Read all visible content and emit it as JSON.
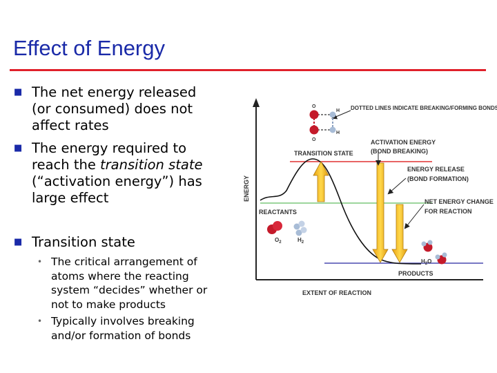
{
  "slide": {
    "title": "Effect of Energy",
    "bullets": {
      "net_energy": {
        "line1": "The net energy released",
        "line2": "(or consumed) does not",
        "line3": "affect rates"
      },
      "energy_required": {
        "line1": "The energy required to",
        "line2_prefix": "reach the ",
        "line2_em": "transition state",
        "line3": "(“activation energy”) has",
        "line4": "large effect"
      },
      "transition_state": {
        "label": "Transition state"
      }
    },
    "sub_bullets": {
      "critical": {
        "line1": "The critical arrangement of",
        "line2": "atoms where the reacting",
        "line3": "system “decides” whether or",
        "line4": "not to make products"
      },
      "involves": {
        "line1": "Typically involves breaking",
        "line2": "and/or formation of bonds"
      }
    }
  },
  "diagram": {
    "y_axis_label": "ENERGY",
    "x_axis_label": "EXTENT OF REACTION",
    "transition_state": "TRANSITION STATE",
    "reactants": "REACTANTS",
    "products": "PRODUCTS",
    "dotted_note": "DOTTED LINES INDICATE BREAKING/FORMING BONDS",
    "activation_energy": {
      "line1": "ACTIVATION ENERGY",
      "line2": "(BOND BREAKING)"
    },
    "energy_release": {
      "line1": "ENERGY RELEASE",
      "line2": "(BOND FORMATION)"
    },
    "net_change": {
      "line1": "NET ENERGY CHANGE",
      "line2": "FOR REACTION"
    },
    "atoms": {
      "o": "O",
      "h": "H"
    },
    "molecules": {
      "o2_main": "O",
      "o2_sub": "2",
      "h2_main": "H",
      "h2_sub": "2",
      "h2o_a": "H",
      "h2o_sub": "2",
      "h2o_b": "O"
    },
    "colors": {
      "ts_line": "#e03030",
      "reactant_line": "#7cc87c",
      "product_line": "#4a4ab0",
      "arrow": "#f0b020",
      "oxygen": "#c41a2a",
      "hydrogen": "#a8bcd6"
    }
  }
}
